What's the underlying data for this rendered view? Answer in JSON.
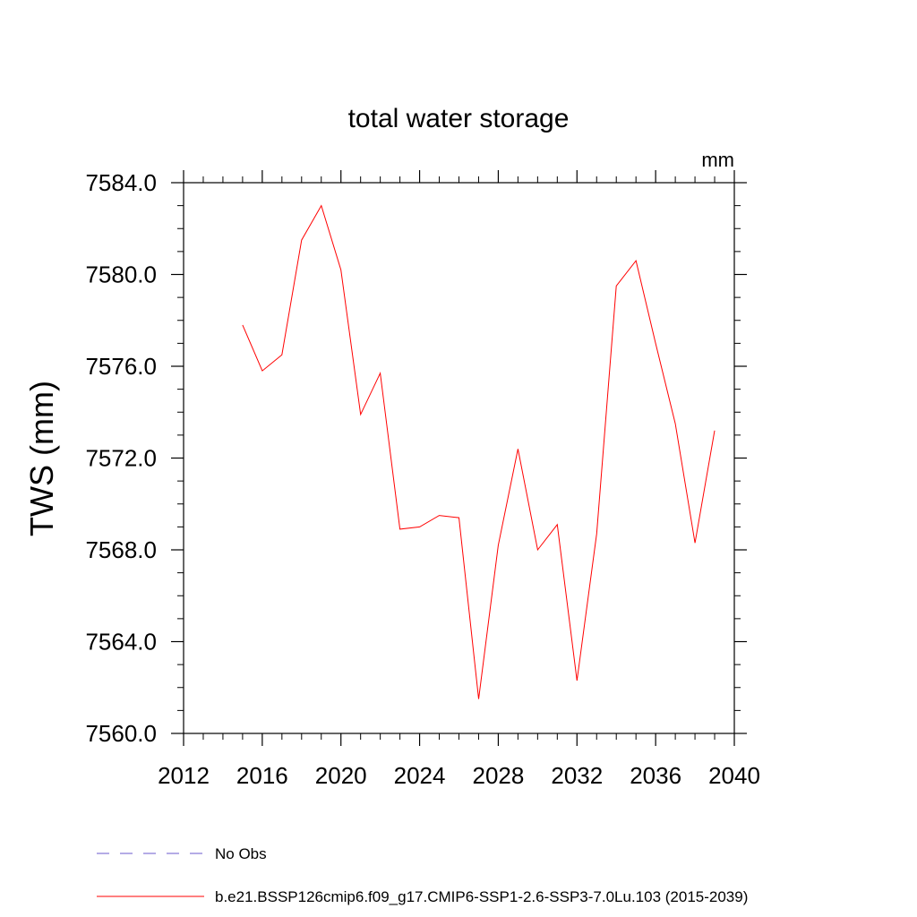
{
  "chart_data": {
    "type": "line",
    "title": "total water storage",
    "units_label": "mm",
    "ylabel": "TWS  (mm)",
    "xlabel": "",
    "xlim": [
      2012,
      2040
    ],
    "ylim": [
      7560,
      7584
    ],
    "x_ticks": [
      2012,
      2016,
      2020,
      2024,
      2028,
      2032,
      2036,
      2040
    ],
    "x_tick_labels": [
      "2012",
      "2016",
      "2020",
      "2024",
      "2028",
      "2032",
      "2036",
      "2040"
    ],
    "y_ticks": [
      7560,
      7564,
      7568,
      7572,
      7576,
      7580,
      7584
    ],
    "y_tick_labels": [
      "7560.0",
      "7564.0",
      "7568.0",
      "7572.0",
      "7576.0",
      "7580.0",
      "7584.0"
    ],
    "grid": false,
    "legend_position": "bottom",
    "legend": [
      {
        "label": "No Obs",
        "color": "#6a5acd",
        "style": "dashed"
      },
      {
        "label": "b.e21.BSSP126cmip6.f09_g17.CMIP6-SSP1-2.6-SSP3-7.0Lu.103 (2015-2039)",
        "color": "#ff0000",
        "style": "solid"
      }
    ],
    "series": [
      {
        "name": "b.e21.BSSP126cmip6.f09_g17.CMIP6-SSP1-2.6-SSP3-7.0Lu.103 (2015-2039)",
        "color": "#ff0000",
        "x": [
          2015,
          2016,
          2017,
          2018,
          2019,
          2020,
          2021,
          2022,
          2023,
          2024,
          2025,
          2026,
          2027,
          2028,
          2029,
          2030,
          2031,
          2032,
          2033,
          2034,
          2035,
          2036,
          2037,
          2038,
          2039
        ],
        "y": [
          7577.8,
          7575.8,
          7576.5,
          7581.5,
          7583.0,
          7580.2,
          7573.9,
          7575.7,
          7568.9,
          7569.0,
          7569.5,
          7569.4,
          7561.5,
          7568.2,
          7572.4,
          7568.0,
          7569.1,
          7562.3,
          7568.7,
          7579.5,
          7580.6,
          7577.0,
          7573.5,
          7568.3,
          7573.2
        ]
      }
    ]
  }
}
